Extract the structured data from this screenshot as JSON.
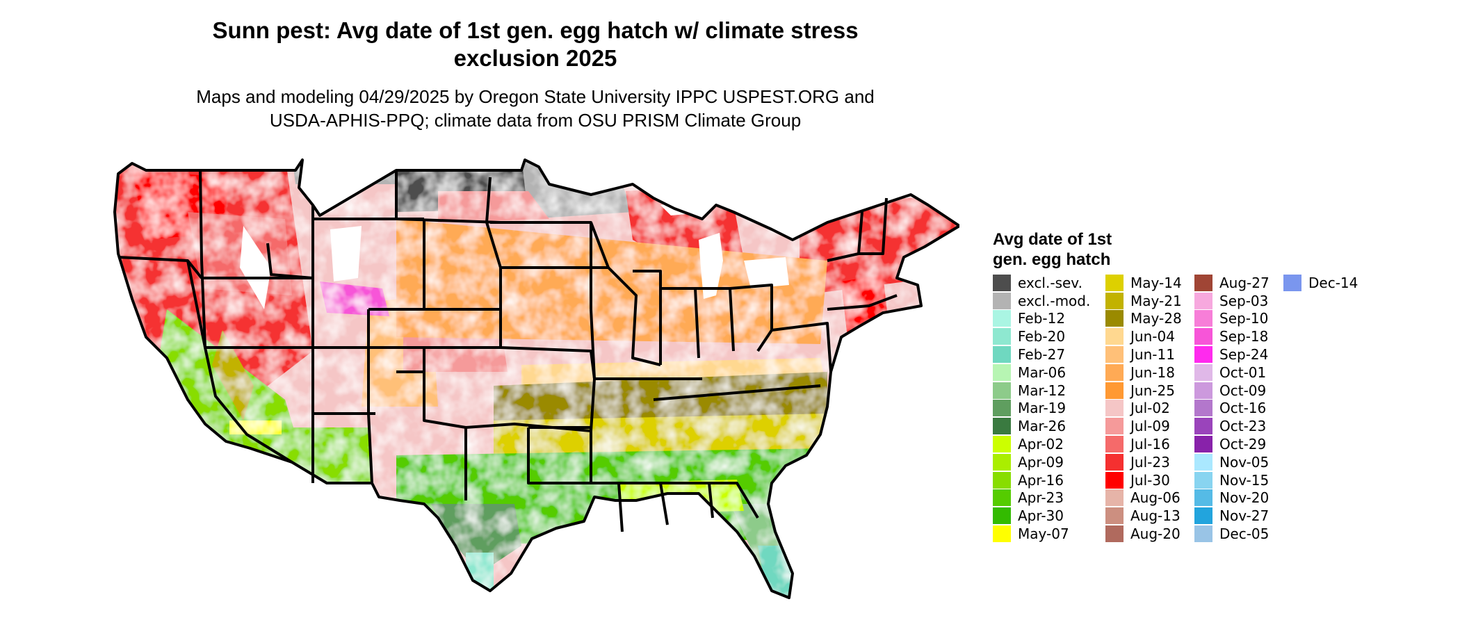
{
  "title_line1": "Sunn pest: Avg date of 1st gen. egg hatch w/ climate stress",
  "title_line2": "exclusion 2025",
  "subtitle_line1": "Maps and modeling 04/29/2025 by Oregon State University IPPC USPEST.ORG and",
  "subtitle_line2": "USDA-APHIS-PPQ; climate data from OSU PRISM Climate Group",
  "legend": {
    "title_line1": "Avg date of 1st",
    "title_line2": "gen. egg hatch",
    "columns": [
      [
        {
          "label": "excl.-sev.",
          "color": "#4d4d4d"
        },
        {
          "label": "excl.-mod.",
          "color": "#b3b3b3"
        },
        {
          "label": "Feb-12",
          "color": "#aaf5e3"
        },
        {
          "label": "Feb-20",
          "color": "#8ee8d0"
        },
        {
          "label": "Feb-27",
          "color": "#6fd8c0"
        },
        {
          "label": "Mar-06",
          "color": "#b7f5b3"
        },
        {
          "label": "Mar-12",
          "color": "#8dcb8a"
        },
        {
          "label": "Mar-19",
          "color": "#5f9e5f"
        },
        {
          "label": "Mar-26",
          "color": "#3a7a40"
        },
        {
          "label": "Apr-02",
          "color": "#ccff00"
        },
        {
          "label": "Apr-09",
          "color": "#aaee00"
        },
        {
          "label": "Apr-16",
          "color": "#88dd00"
        },
        {
          "label": "Apr-23",
          "color": "#55cc00"
        },
        {
          "label": "Apr-30",
          "color": "#33bb00"
        },
        {
          "label": "May-07",
          "color": "#ffff00"
        }
      ],
      [
        {
          "label": "May-14",
          "color": "#ddd000"
        },
        {
          "label": "May-21",
          "color": "#c2b200"
        },
        {
          "label": "May-28",
          "color": "#9a8a00"
        },
        {
          "label": "Jun-04",
          "color": "#ffd890"
        },
        {
          "label": "Jun-11",
          "color": "#ffc078"
        },
        {
          "label": "Jun-18",
          "color": "#ffaa55"
        },
        {
          "label": "Jun-25",
          "color": "#ff9933"
        },
        {
          "label": "Jul-02",
          "color": "#f5c6c6"
        },
        {
          "label": "Jul-09",
          "color": "#f59a9a"
        },
        {
          "label": "Jul-16",
          "color": "#f56a6a"
        },
        {
          "label": "Jul-23",
          "color": "#f53030"
        },
        {
          "label": "Jul-30",
          "color": "#ff0000"
        },
        {
          "label": "Aug-06",
          "color": "#e6b4a8"
        },
        {
          "label": "Aug-13",
          "color": "#cc8f80"
        },
        {
          "label": "Aug-20",
          "color": "#b06a5e"
        }
      ],
      [
        {
          "label": "Aug-27",
          "color": "#a04535"
        },
        {
          "label": "Sep-03",
          "color": "#f7a8de"
        },
        {
          "label": "Sep-10",
          "color": "#f77ed8"
        },
        {
          "label": "Sep-18",
          "color": "#f755d8"
        },
        {
          "label": "Sep-24",
          "color": "#ff2aee"
        },
        {
          "label": "Oct-01",
          "color": "#e0b8e8"
        },
        {
          "label": "Oct-09",
          "color": "#cc99dd"
        },
        {
          "label": "Oct-16",
          "color": "#b377cc"
        },
        {
          "label": "Oct-23",
          "color": "#9a44bb"
        },
        {
          "label": "Oct-29",
          "color": "#8822aa"
        },
        {
          "label": "Nov-05",
          "color": "#aae8ff"
        },
        {
          "label": "Nov-15",
          "color": "#88d4f0"
        },
        {
          "label": "Nov-20",
          "color": "#55bbe6"
        },
        {
          "label": "Nov-27",
          "color": "#22a4dd"
        },
        {
          "label": "Dec-05",
          "color": "#99c4e6"
        }
      ],
      [
        {
          "label": "Dec-14",
          "color": "#7a96ee"
        }
      ]
    ]
  }
}
